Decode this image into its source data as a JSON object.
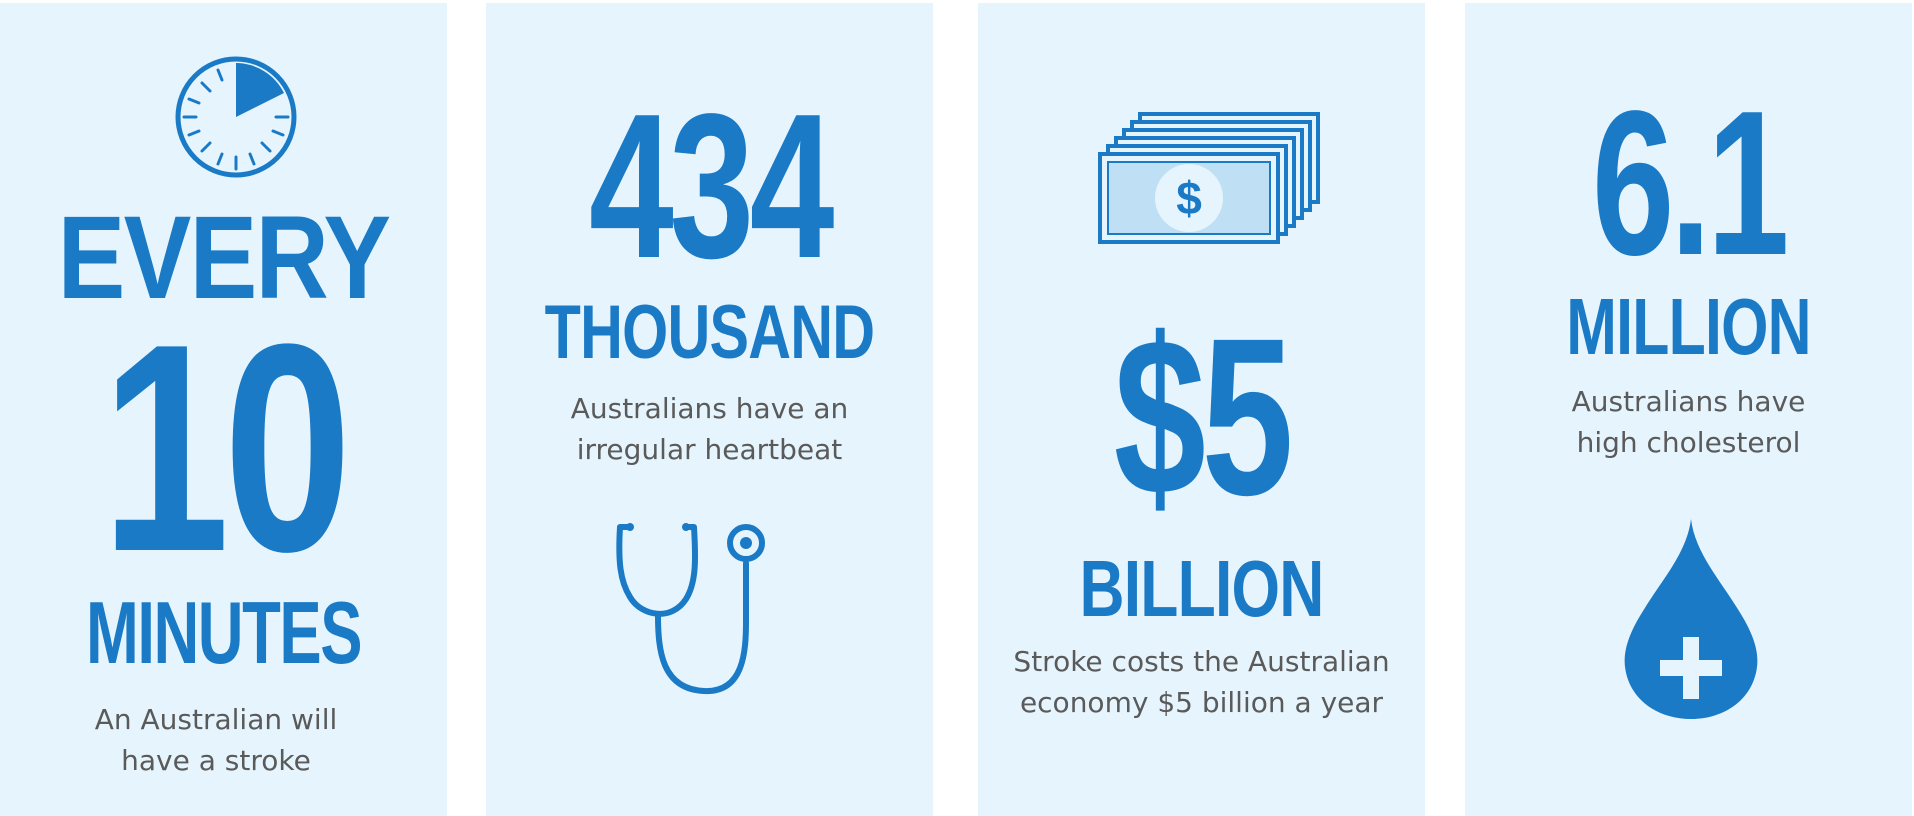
{
  "colors": {
    "panel_bg": "#e6f5fd",
    "accent": "#1a7ac6",
    "caption_text": "#5a5a5a",
    "icon_light": "#bfe0f4"
  },
  "panels": [
    {
      "icon": "stopwatch-icon",
      "stat_lines": [
        "EVERY",
        "10",
        "MINUTES"
      ],
      "caption_lines": [
        "An Australian will",
        "have a stroke"
      ]
    },
    {
      "icon": "stethoscope-icon",
      "stat_lines": [
        "434",
        "THOUSAND"
      ],
      "caption_lines": [
        "Australians have an",
        "irregular heartbeat"
      ]
    },
    {
      "icon": "money-stack-icon",
      "icon_symbol": "$",
      "stat_lines": [
        "$5",
        "BILLION"
      ],
      "caption_lines": [
        "Stroke costs the Australian",
        "economy $5 billion a year"
      ]
    },
    {
      "icon": "blood-drop-icon",
      "stat_lines": [
        "6.1",
        "MILLION"
      ],
      "caption_lines": [
        "Australians have",
        "high cholesterol"
      ]
    }
  ]
}
